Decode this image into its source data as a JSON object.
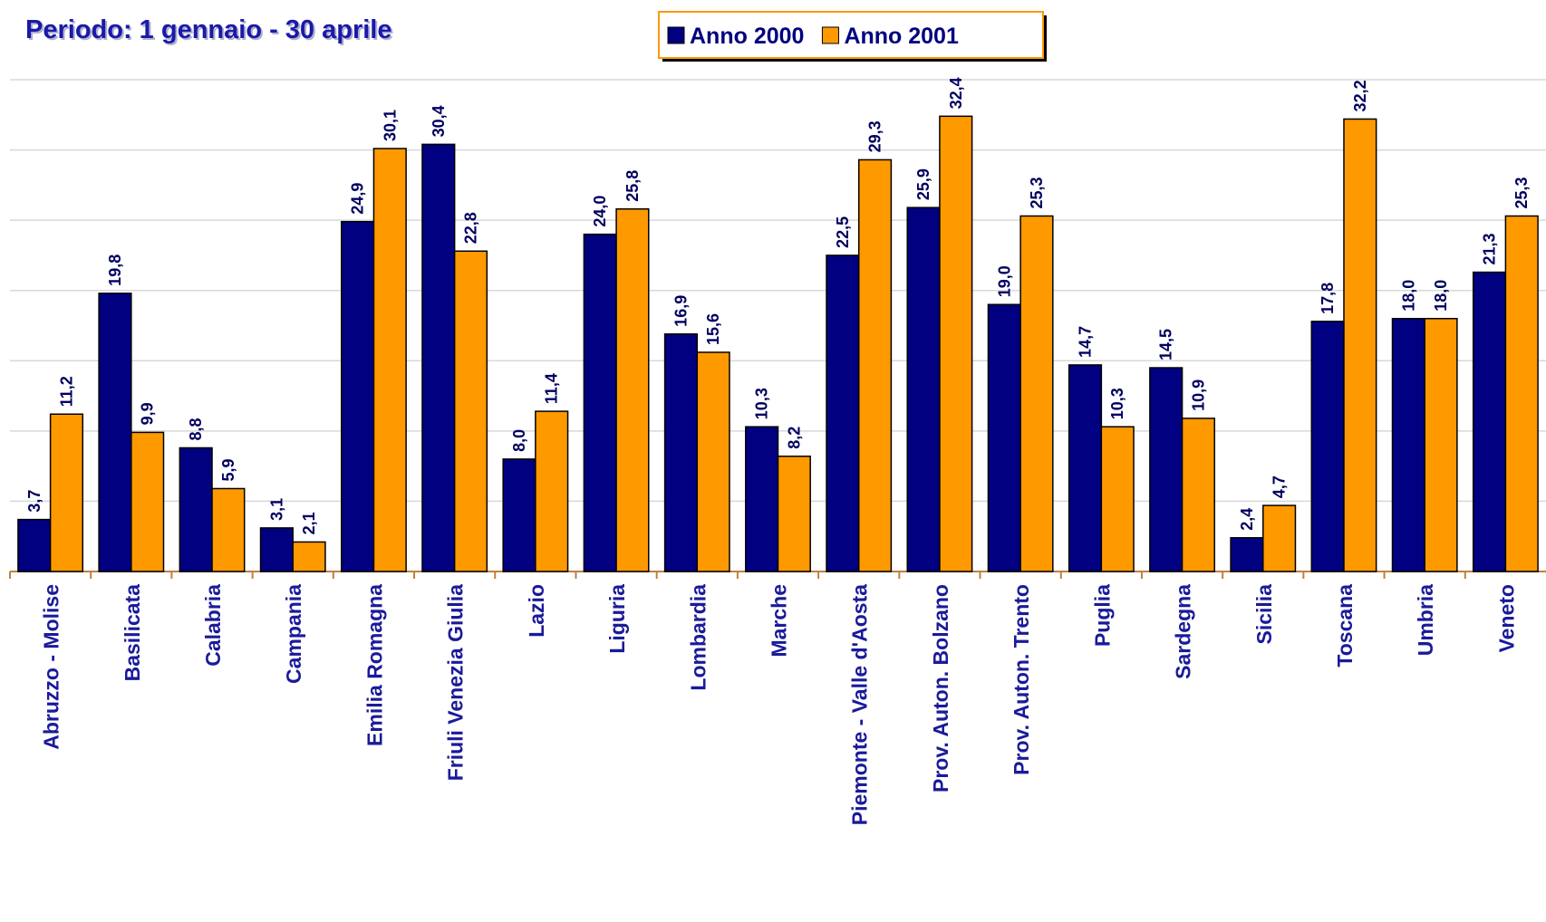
{
  "chart_data": {
    "type": "bar",
    "title": "Periodo: 1 gennaio - 30 aprile",
    "categories": [
      "Abruzzo - Molise",
      "Basilicata",
      "Calabria",
      "Campania",
      "Emilia Romagna",
      "Friuli Venezia Giulia",
      "Lazio",
      "Liguria",
      "Lombardia",
      "Marche",
      "Piemonte - Valle d'Aosta",
      "Prov. Auton. Bolzano",
      "Prov. Auton. Trento",
      "Puglia",
      "Sardegna",
      "Sicilia",
      "Toscana",
      "Umbria",
      "Veneto"
    ],
    "series": [
      {
        "name": "Anno 2000",
        "color": "#000080",
        "values": [
          3.7,
          19.8,
          8.8,
          3.1,
          24.9,
          30.4,
          8.0,
          24.0,
          16.9,
          10.3,
          22.5,
          25.9,
          19.0,
          14.7,
          14.5,
          2.4,
          17.8,
          18.0,
          21.3
        ],
        "value_labels": [
          "3,7",
          "19,8",
          "8,8",
          "3,1",
          "24,9",
          "30,4",
          "8,0",
          "24,0",
          "16,9",
          "10,3",
          "22,5",
          "25,9",
          "19,0",
          "14,7",
          "14,5",
          "2,4",
          "17,8",
          "18,0",
          "21,3"
        ]
      },
      {
        "name": "Anno 2001",
        "color": "#ff9900",
        "values": [
          11.2,
          9.9,
          5.9,
          2.1,
          30.1,
          22.8,
          11.4,
          25.8,
          15.6,
          8.2,
          29.3,
          32.4,
          25.3,
          10.3,
          10.9,
          4.7,
          32.2,
          18.0,
          25.3
        ],
        "value_labels": [
          "11,2",
          "9,9",
          "5,9",
          "2,1",
          "30,1",
          "22,8",
          "11,4",
          "25,8",
          "15,6",
          "8,2",
          "29,3",
          "32,4",
          "25,3",
          "10,3",
          "10,9",
          "4,7",
          "32,2",
          "18,0",
          "25,3"
        ]
      }
    ],
    "ylim": [
      0,
      35
    ],
    "yticks": [
      0,
      5,
      10,
      15,
      20,
      25,
      30,
      35
    ],
    "grid": true,
    "legend": "top"
  }
}
